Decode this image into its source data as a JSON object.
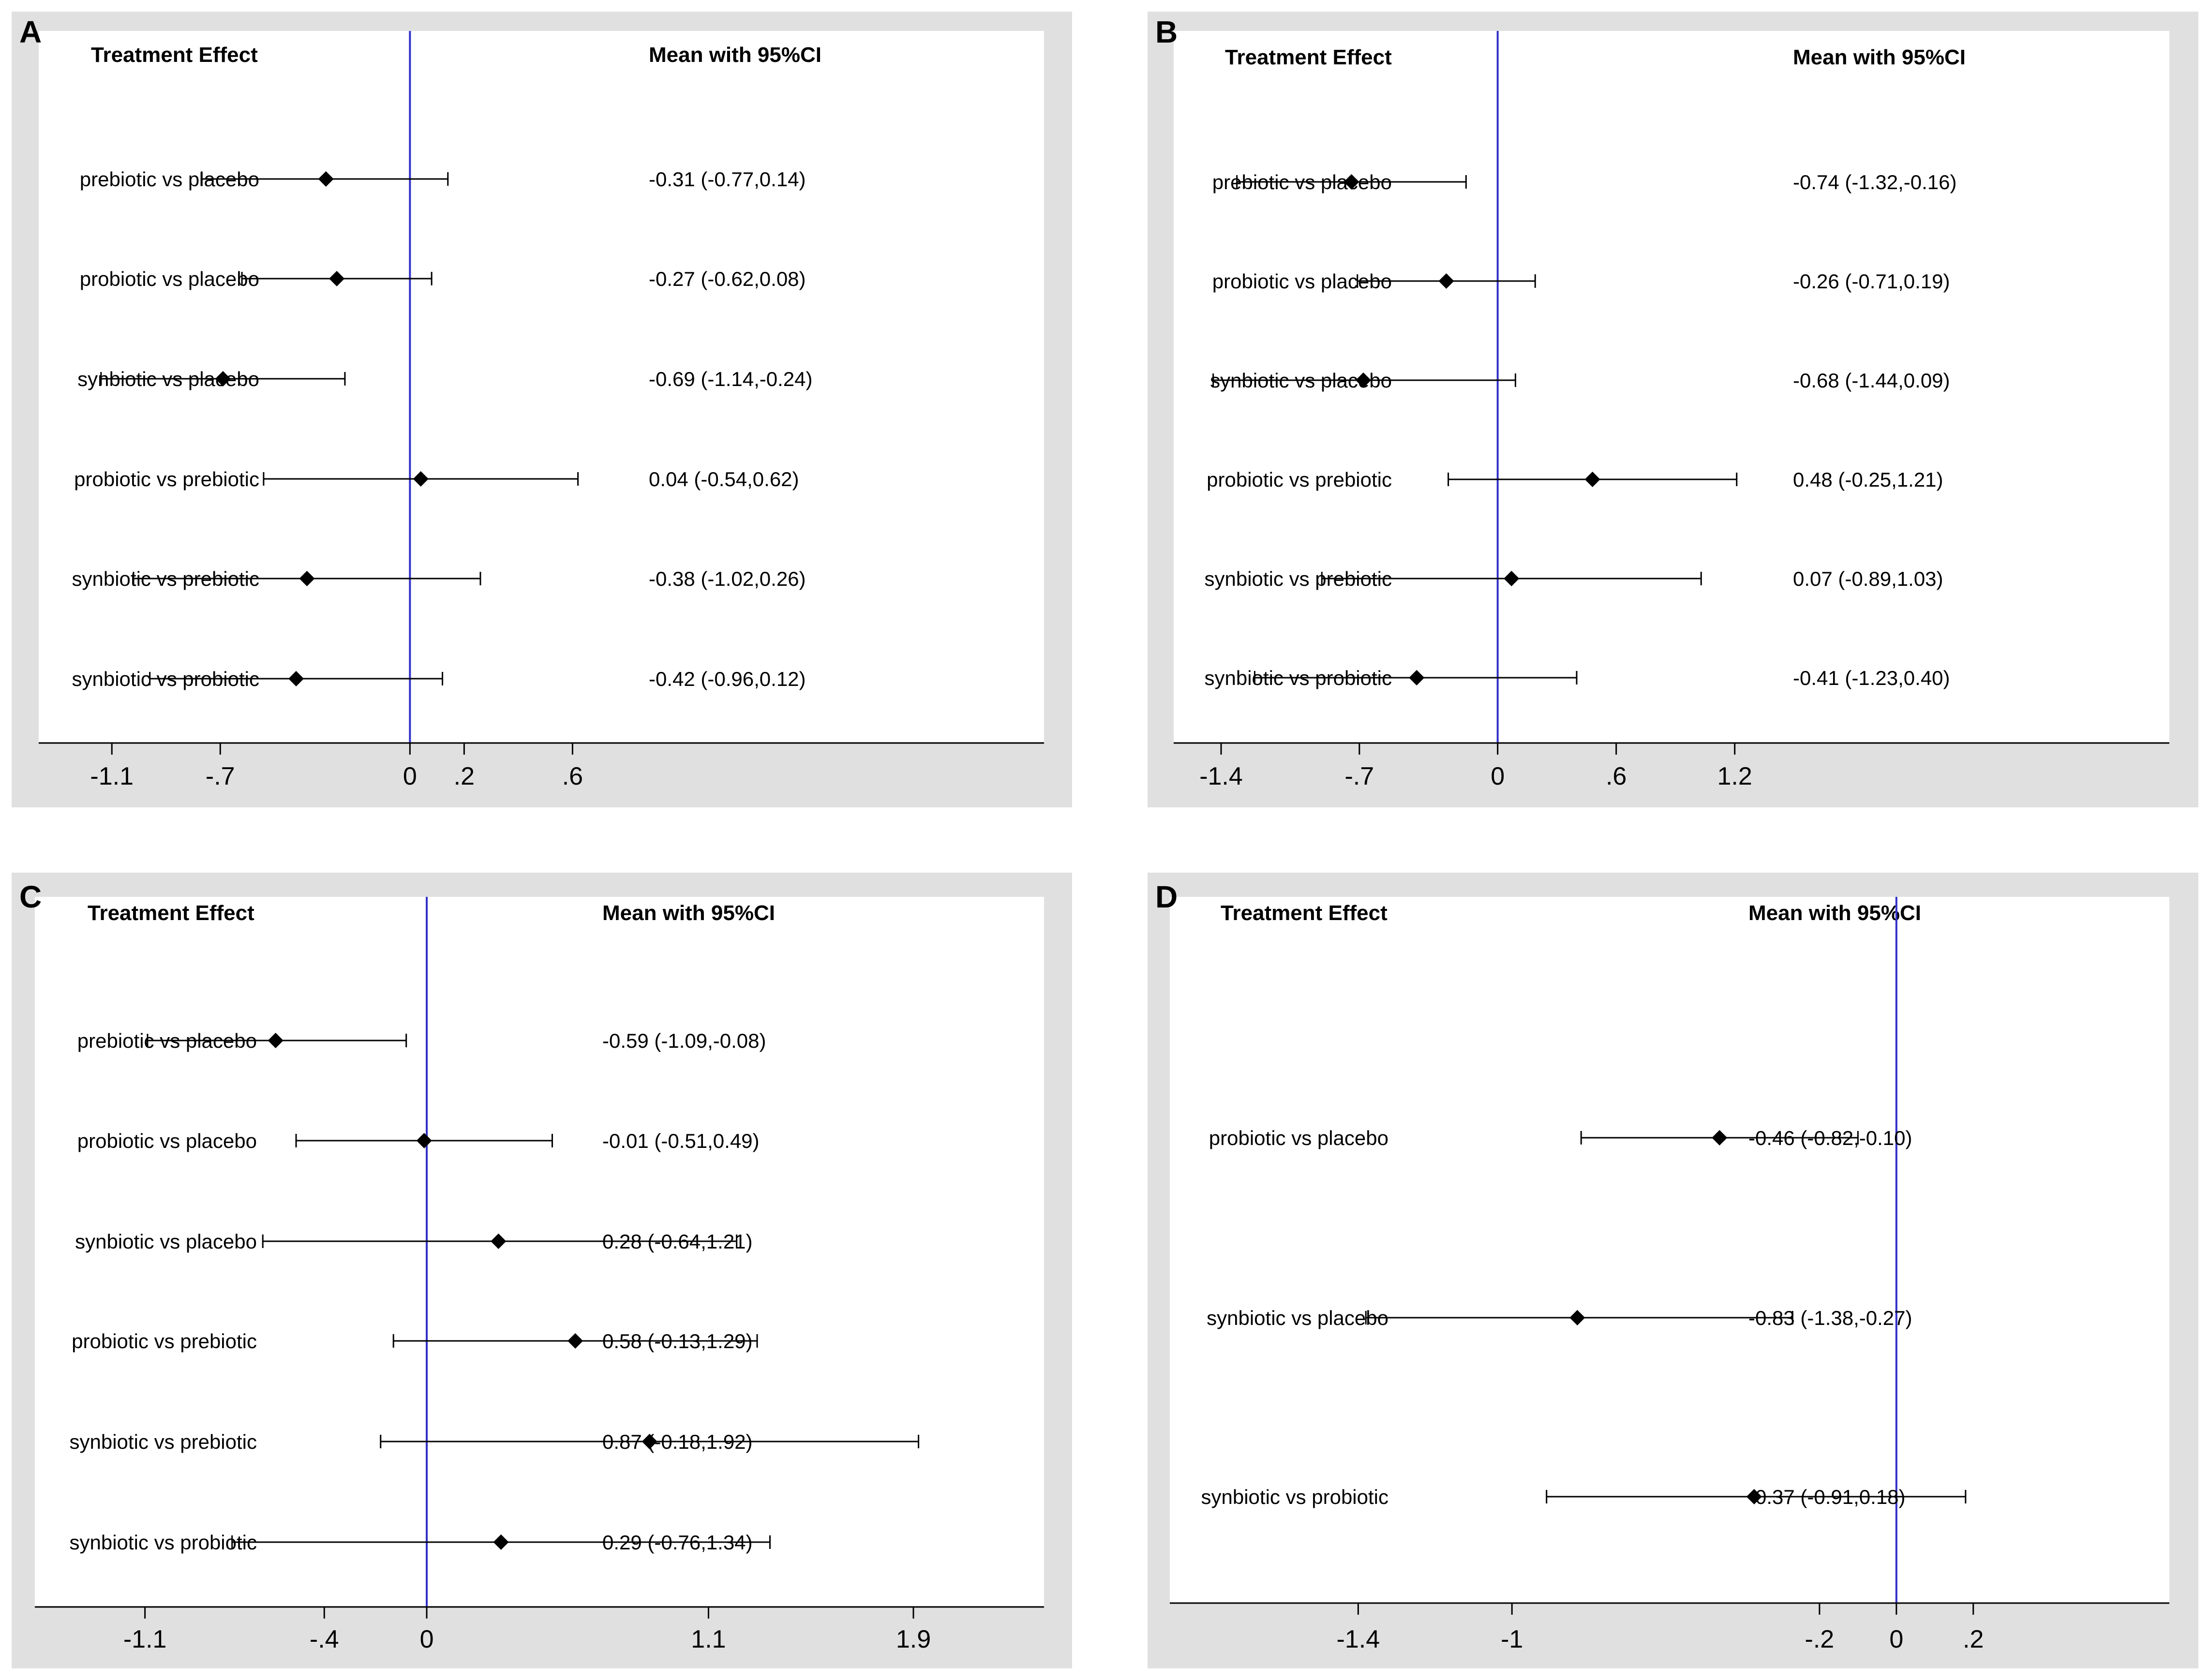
{
  "figure": {
    "header_effect": "Treatment Effect",
    "header_ci": "Mean with 95%CI"
  },
  "colors": {
    "frame": "#e0e0e0",
    "plot_bg": "#ffffff",
    "ref_line": "#3030c8",
    "mark": "#000000"
  },
  "chart_data": [
    {
      "panel": "A",
      "type": "forest",
      "xlim": [
        -1.37,
        2.34
      ],
      "ticks": [
        -1.1,
        -0.7,
        0,
        0.2,
        0.6
      ],
      "tick_labels": [
        "-1.1",
        "-.7",
        "0",
        ".2",
        ".6"
      ],
      "reference": 0,
      "rows": [
        {
          "label": "prebiotic vs placebo",
          "mean": -0.31,
          "lo": -0.77,
          "hi": 0.14,
          "text": "-0.31 (-0.77,0.14)"
        },
        {
          "label": "probiotic vs placebo",
          "mean": -0.27,
          "lo": -0.62,
          "hi": 0.08,
          "text": "-0.27 (-0.62,0.08)"
        },
        {
          "label": "synbiotic vs placebo",
          "mean": -0.69,
          "lo": -1.14,
          "hi": -0.24,
          "text": "-0.69 (-1.14,-0.24)"
        },
        {
          "label": "probiotic vs prebiotic",
          "mean": 0.04,
          "lo": -0.54,
          "hi": 0.62,
          "text": "0.04 (-0.54,0.62)"
        },
        {
          "label": "synbiotic vs prebiotic",
          "mean": -0.38,
          "lo": -1.02,
          "hi": 0.26,
          "text": "-0.38 (-1.02,0.26)"
        },
        {
          "label": "synbiotic vs probiotic",
          "mean": -0.42,
          "lo": -0.96,
          "hi": 0.12,
          "text": "-0.42 (-0.96,0.12)"
        }
      ]
    },
    {
      "panel": "B",
      "type": "forest",
      "xlim": [
        -1.64,
        3.4
      ],
      "ticks": [
        -1.4,
        -0.7,
        0,
        0.6,
        1.2
      ],
      "tick_labels": [
        "-1.4",
        "-.7",
        "0",
        ".6",
        "1.2"
      ],
      "reference": 0,
      "rows": [
        {
          "label": "prebiotic vs placebo",
          "mean": -0.74,
          "lo": -1.32,
          "hi": -0.16,
          "text": "-0.74 (-1.32,-0.16)"
        },
        {
          "label": "probiotic vs placebo",
          "mean": -0.26,
          "lo": -0.71,
          "hi": 0.19,
          "text": "-0.26 (-0.71,0.19)"
        },
        {
          "label": "synbiotic vs placebo",
          "mean": -0.68,
          "lo": -1.44,
          "hi": 0.09,
          "text": "-0.68 (-1.44,0.09)"
        },
        {
          "label": "probiotic vs prebiotic",
          "mean": 0.48,
          "lo": -0.25,
          "hi": 1.21,
          "text": "0.48 (-0.25,1.21)"
        },
        {
          "label": "synbiotic vs prebiotic",
          "mean": 0.07,
          "lo": -0.89,
          "hi": 1.03,
          "text": "0.07 (-0.89,1.03)"
        },
        {
          "label": "synbiotic vs probiotic",
          "mean": -0.41,
          "lo": -1.23,
          "hi": 0.4,
          "text": "-0.41 (-1.23,0.40)"
        }
      ]
    },
    {
      "panel": "C",
      "type": "forest",
      "xlim": [
        -1.53,
        2.41
      ],
      "ticks": [
        -1.1,
        -0.4,
        0,
        1.1,
        1.9
      ],
      "tick_labels": [
        "-1.1",
        "-.4",
        "0",
        "1.1",
        "1.9"
      ],
      "reference": 0,
      "rows": [
        {
          "label": "prebiotic vs placebo",
          "mean": -0.59,
          "lo": -1.09,
          "hi": -0.08,
          "text": "-0.59 (-1.09,-0.08)"
        },
        {
          "label": "probiotic vs placebo",
          "mean": -0.01,
          "lo": -0.51,
          "hi": 0.49,
          "text": "-0.01 (-0.51,0.49)"
        },
        {
          "label": "synbiotic vs placebo",
          "mean": 0.28,
          "lo": -0.64,
          "hi": 1.21,
          "text": "0.28 (-0.64,1.21)"
        },
        {
          "label": "probiotic vs prebiotic",
          "mean": 0.58,
          "lo": -0.13,
          "hi": 1.29,
          "text": "0.58 (-0.13,1.29)"
        },
        {
          "label": "synbiotic vs prebiotic",
          "mean": 0.87,
          "lo": -0.18,
          "hi": 1.92,
          "text": "0.87 (-0.18,1.92)"
        },
        {
          "label": "synbiotic vs probiotic",
          "mean": 0.29,
          "lo": -0.76,
          "hi": 1.34,
          "text": "0.29 (-0.76,1.34)"
        }
      ]
    },
    {
      "panel": "D",
      "type": "forest",
      "xlim": [
        -1.89,
        0.71
      ],
      "ticks": [
        -1.4,
        -1,
        -0.2,
        0,
        0.2
      ],
      "tick_labels": [
        "-1.4",
        "-1",
        "-.2",
        "0",
        ".2"
      ],
      "reference": 0,
      "rows": [
        {
          "label": "probiotic vs placebo",
          "mean": -0.46,
          "lo": -0.82,
          "hi": -0.1,
          "text": "-0.46 (-0.82,-0.10)"
        },
        {
          "label": "synbiotic vs placebo",
          "mean": -0.83,
          "lo": -1.38,
          "hi": -0.27,
          "text": "-0.83 (-1.38,-0.27)"
        },
        {
          "label": "synbiotic vs probiotic",
          "mean": -0.37,
          "lo": -0.91,
          "hi": 0.18,
          "text": "-0.37 (-0.91,0.18)"
        }
      ]
    }
  ]
}
